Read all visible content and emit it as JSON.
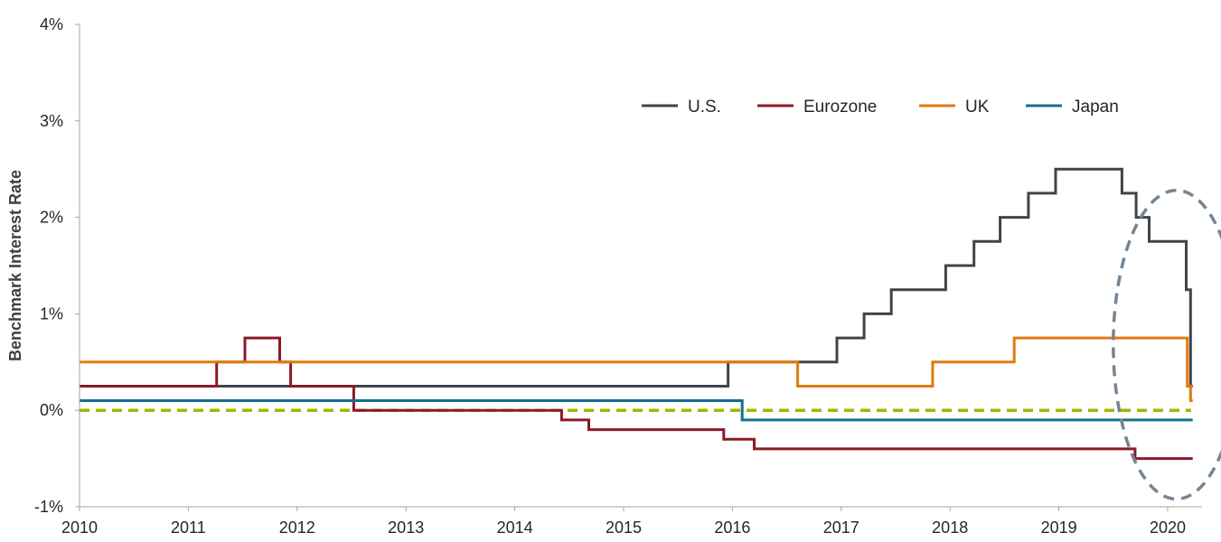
{
  "chart_data": {
    "type": "line",
    "ylabel": "Benchmark Interest Rate",
    "xlabel": "",
    "title": "",
    "xlim": [
      2010,
      2020.3
    ],
    "ylim": [
      -1,
      4
    ],
    "x_ticks": [
      2010,
      2011,
      2012,
      2013,
      2014,
      2015,
      2016,
      2017,
      2018,
      2019,
      2020
    ],
    "x_tick_labels": [
      "2010",
      "2011",
      "2012",
      "2013",
      "2014",
      "2015",
      "2016",
      "2017",
      "2018",
      "2019",
      "2020"
    ],
    "y_ticks": [
      -1,
      0,
      1,
      2,
      3,
      4
    ],
    "y_tick_labels": [
      "-1%",
      "0%",
      "1%",
      "2%",
      "3%",
      "4%"
    ],
    "grid": false,
    "legend_position": "top-right",
    "zero_line": {
      "y": 0,
      "color": "#a8b400",
      "dashed": true
    },
    "highlight": {
      "shape": "ellipse",
      "x_center": 2020.08,
      "y_center": 0.68,
      "x_radius": 0.58,
      "y_radius": 1.6,
      "color": "#748594",
      "dashed": true
    },
    "series": [
      {
        "name": "U.S.",
        "color": "#404449",
        "step": true,
        "points": [
          [
            2010.0,
            0.25
          ],
          [
            2015.96,
            0.25
          ],
          [
            2015.96,
            0.5
          ],
          [
            2016.96,
            0.5
          ],
          [
            2016.96,
            0.75
          ],
          [
            2017.21,
            0.75
          ],
          [
            2017.21,
            1.0
          ],
          [
            2017.46,
            1.0
          ],
          [
            2017.46,
            1.25
          ],
          [
            2017.96,
            1.25
          ],
          [
            2017.96,
            1.5
          ],
          [
            2018.22,
            1.5
          ],
          [
            2018.22,
            1.75
          ],
          [
            2018.46,
            1.75
          ],
          [
            2018.46,
            2.0
          ],
          [
            2018.72,
            2.0
          ],
          [
            2018.72,
            2.25
          ],
          [
            2018.97,
            2.25
          ],
          [
            2018.97,
            2.5
          ],
          [
            2019.58,
            2.5
          ],
          [
            2019.58,
            2.25
          ],
          [
            2019.71,
            2.25
          ],
          [
            2019.71,
            2.0
          ],
          [
            2019.83,
            2.0
          ],
          [
            2019.83,
            1.75
          ],
          [
            2020.17,
            1.75
          ],
          [
            2020.17,
            1.25
          ],
          [
            2020.21,
            1.25
          ],
          [
            2020.21,
            0.25
          ],
          [
            2020.23,
            0.25
          ]
        ]
      },
      {
        "name": "Eurozone",
        "color": "#8b1a27",
        "step": true,
        "points": [
          [
            2010.0,
            0.25
          ],
          [
            2011.26,
            0.25
          ],
          [
            2011.26,
            0.5
          ],
          [
            2011.52,
            0.5
          ],
          [
            2011.52,
            0.75
          ],
          [
            2011.84,
            0.75
          ],
          [
            2011.84,
            0.5
          ],
          [
            2011.94,
            0.5
          ],
          [
            2011.94,
            0.25
          ],
          [
            2012.52,
            0.25
          ],
          [
            2012.52,
            0.0
          ],
          [
            2014.43,
            0.0
          ],
          [
            2014.43,
            -0.1
          ],
          [
            2014.68,
            -0.1
          ],
          [
            2014.68,
            -0.2
          ],
          [
            2015.92,
            -0.2
          ],
          [
            2015.92,
            -0.3
          ],
          [
            2016.2,
            -0.3
          ],
          [
            2016.2,
            -0.4
          ],
          [
            2019.7,
            -0.4
          ],
          [
            2019.7,
            -0.5
          ],
          [
            2020.23,
            -0.5
          ]
        ]
      },
      {
        "name": "UK",
        "color": "#e07b10",
        "step": true,
        "points": [
          [
            2010.0,
            0.5
          ],
          [
            2016.6,
            0.5
          ],
          [
            2016.6,
            0.25
          ],
          [
            2017.84,
            0.25
          ],
          [
            2017.84,
            0.5
          ],
          [
            2018.59,
            0.5
          ],
          [
            2018.59,
            0.75
          ],
          [
            2020.18,
            0.75
          ],
          [
            2020.18,
            0.25
          ],
          [
            2020.21,
            0.25
          ],
          [
            2020.21,
            0.1
          ],
          [
            2020.23,
            0.1
          ]
        ]
      },
      {
        "name": "Japan",
        "color": "#12708c",
        "step": true,
        "points": [
          [
            2010.0,
            0.1
          ],
          [
            2016.09,
            0.1
          ],
          [
            2016.09,
            -0.1
          ],
          [
            2020.23,
            -0.1
          ]
        ]
      }
    ]
  }
}
